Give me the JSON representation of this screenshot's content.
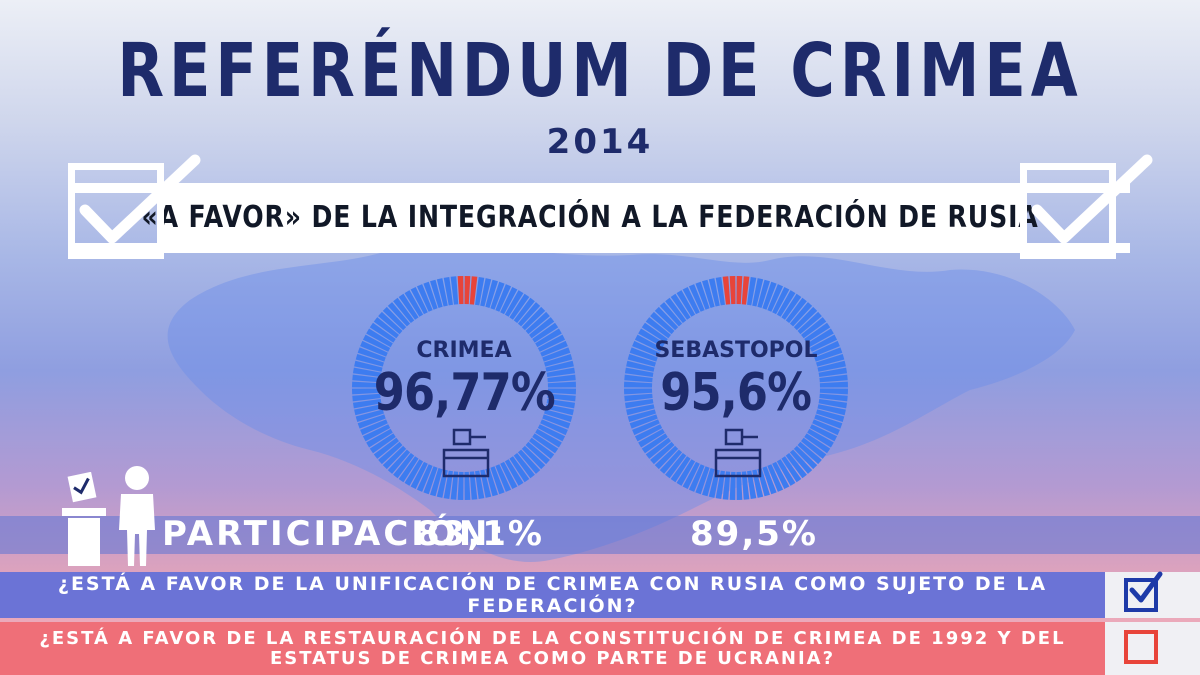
{
  "title": "REFERÉNDUM DE CRIMEA",
  "year": "2014",
  "banner": "«A FAVOR» DE LA INTEGRACIÓN A LA FEDERACIÓN DE RUSIA",
  "colors": {
    "navy": "#1e2b6b",
    "ring_blue": "#3d7cf0",
    "ring_red": "#e8443a",
    "q1_band": "#6b73d6",
    "q2_band": "#ef6f78"
  },
  "chart_data": {
    "type": "pie",
    "series": [
      {
        "name": "CRIMEA",
        "value": 96.77,
        "display": "96,77%",
        "participation": "83,1%"
      },
      {
        "name": "SEBASTOPOL",
        "value": 95.6,
        "display": "95,6%",
        "participation": "89,5%"
      }
    ]
  },
  "participation_label": "PARTICIPACIÓN:",
  "questions": [
    {
      "text": "¿ESTÁ A FAVOR DE LA UNIFICACIÓN DE CRIMEA CON RUSIA COMO SUJETO DE LA FEDERACIÓN?",
      "checked": true
    },
    {
      "text": "¿ESTÁ A FAVOR DE LA RESTAURACIÓN DE LA CONSTITUCIÓN DE CRIMEA DE 1992 Y DEL ESTATUS DE CRIMEA COMO PARTE DE UCRANIA?",
      "checked": false
    }
  ],
  "icons": [
    "check-icon",
    "ballot-box-icon",
    "voter-icon"
  ]
}
